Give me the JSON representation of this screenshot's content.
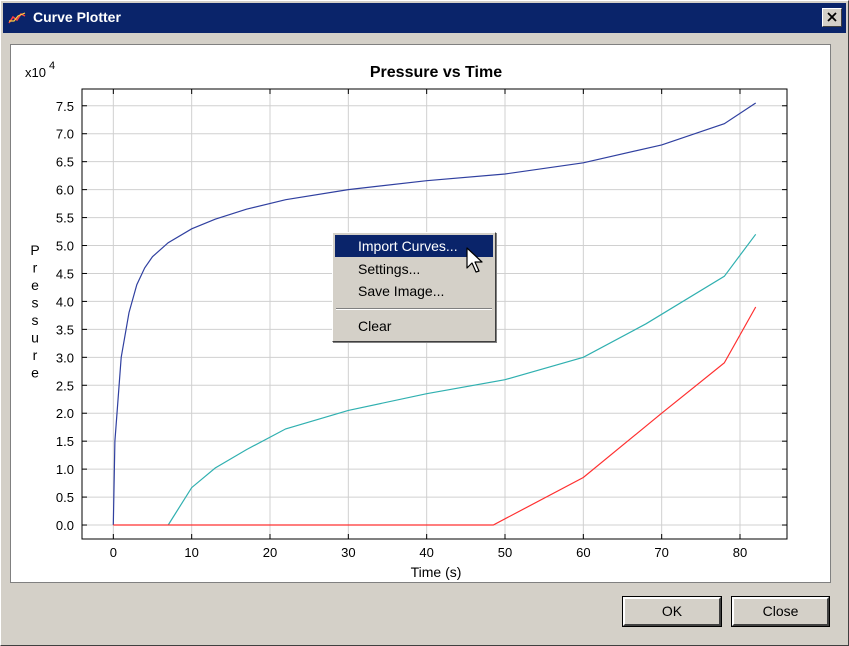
{
  "window": {
    "title": "Curve Plotter",
    "close_glyph": "✕"
  },
  "buttons": {
    "ok": "OK",
    "close": "Close"
  },
  "context_menu": {
    "items": [
      {
        "label": "Import Curves...",
        "highlighted": true
      },
      {
        "label": "Settings..."
      },
      {
        "label": "Save Image..."
      },
      {
        "label": "Clear"
      }
    ]
  },
  "icons": {
    "app": "app-icon",
    "close": "close-icon",
    "cursor": "mouse-pointer-icon"
  },
  "chart_data": {
    "type": "line",
    "title": "Pressure vs Time",
    "xlabel": "Time (s)",
    "ylabel": "Pressure",
    "y_multiplier_base": "x10",
    "y_multiplier_exp": "4",
    "xlim": [
      -4,
      86
    ],
    "ylim": [
      -0.25,
      7.8
    ],
    "x_ticks": [
      0,
      10,
      20,
      30,
      40,
      50,
      60,
      70,
      80
    ],
    "y_ticks": [
      0.0,
      0.5,
      1.0,
      1.5,
      2.0,
      2.5,
      3.0,
      3.5,
      4.0,
      4.5,
      5.0,
      5.5,
      6.0,
      6.5,
      7.0,
      7.5
    ],
    "grid": true,
    "series": [
      {
        "color": "#3040a0",
        "points": [
          [
            0,
            0
          ],
          [
            0.2,
            1.5
          ],
          [
            1,
            3.0
          ],
          [
            2,
            3.8
          ],
          [
            3,
            4.3
          ],
          [
            4,
            4.6
          ],
          [
            5,
            4.8
          ],
          [
            7,
            5.05
          ],
          [
            10,
            5.3
          ],
          [
            13,
            5.47
          ],
          [
            17,
            5.65
          ],
          [
            22,
            5.82
          ],
          [
            30,
            6.0
          ],
          [
            40,
            6.16
          ],
          [
            50,
            6.28
          ],
          [
            60,
            6.48
          ],
          [
            70,
            6.8
          ],
          [
            78,
            7.18
          ],
          [
            82,
            7.55
          ]
        ]
      },
      {
        "color": "#30b0b0",
        "points": [
          [
            7,
            0
          ],
          [
            10,
            0.67
          ],
          [
            13,
            1.02
          ],
          [
            17,
            1.35
          ],
          [
            22,
            1.72
          ],
          [
            30,
            2.05
          ],
          [
            40,
            2.35
          ],
          [
            50,
            2.6
          ],
          [
            60,
            3.0
          ],
          [
            68,
            3.6
          ],
          [
            78,
            4.45
          ],
          [
            82,
            5.2
          ]
        ]
      },
      {
        "color": "#ff3030",
        "points": [
          [
            0,
            0
          ],
          [
            48.5,
            0
          ],
          [
            60,
            0.85
          ],
          [
            70,
            2.0
          ],
          [
            78,
            2.9
          ],
          [
            82,
            3.9
          ]
        ]
      }
    ]
  }
}
